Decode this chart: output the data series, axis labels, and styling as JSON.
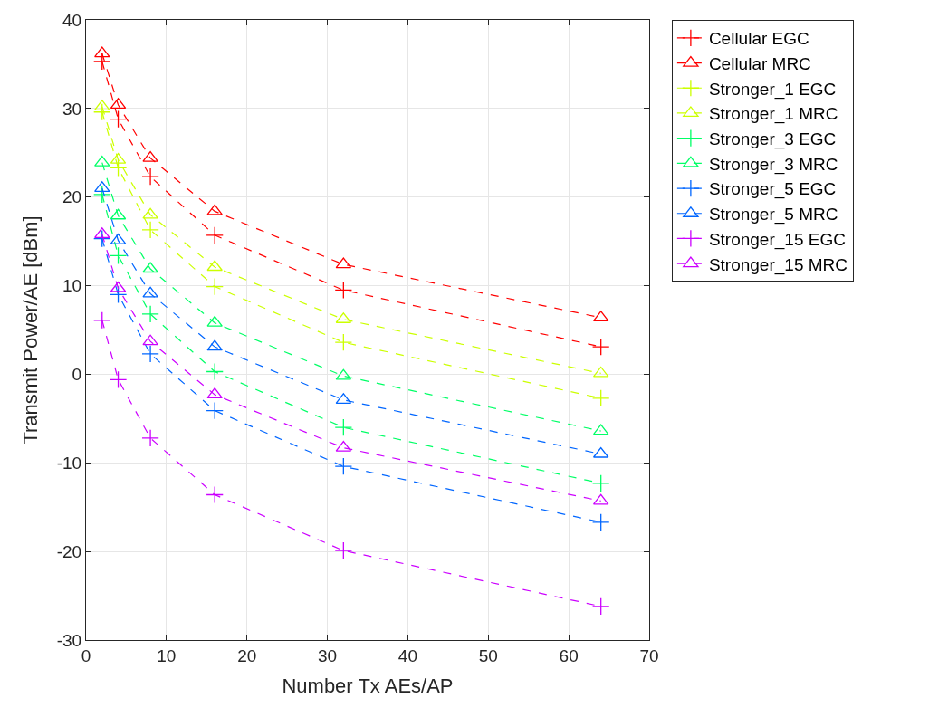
{
  "chart_data": {
    "type": "line",
    "xlabel": "Number Tx AEs/AP",
    "ylabel": "Transmit Power/AE [dBm]",
    "x": [
      2,
      4,
      8,
      16,
      32,
      64
    ],
    "xlim": [
      0,
      70
    ],
    "xticks": [
      0,
      10,
      20,
      30,
      40,
      50,
      60,
      70
    ],
    "ylim": [
      -30,
      40
    ],
    "yticks": [
      -30,
      -20,
      -10,
      0,
      10,
      20,
      30,
      40
    ],
    "grid": true,
    "legend": "top right",
    "line_style": "dashed",
    "series": [
      {
        "name": "Cellular EGC",
        "color": "#ff0000",
        "marker": "cross",
        "values": [
          35.3,
          28.8,
          22.3,
          15.7,
          9.5,
          3.1
        ]
      },
      {
        "name": "Cellular MRC",
        "color": "#ff0000",
        "marker": "triangle",
        "values": [
          36.2,
          30.4,
          24.4,
          18.4,
          12.4,
          6.4
        ]
      },
      {
        "name": "Stronger_1 EGC",
        "color": "#ccff00",
        "marker": "cross",
        "values": [
          29.6,
          23.3,
          16.3,
          9.9,
          3.6,
          -2.7
        ]
      },
      {
        "name": "Stronger_1 MRC",
        "color": "#ccff00",
        "marker": "triangle",
        "values": [
          30.2,
          24.2,
          18.0,
          12.1,
          6.2,
          0.1
        ]
      },
      {
        "name": "Stronger_3 EGC",
        "color": "#00ff66",
        "marker": "cross",
        "values": [
          20.3,
          13.4,
          6.8,
          0.3,
          -6.0,
          -12.3
        ]
      },
      {
        "name": "Stronger_3 MRC",
        "color": "#00ff66",
        "marker": "triangle",
        "values": [
          23.9,
          17.9,
          11.9,
          5.8,
          -0.2,
          -6.4
        ]
      },
      {
        "name": "Stronger_5 EGC",
        "color": "#0066ff",
        "marker": "cross",
        "values": [
          15.3,
          9.0,
          2.3,
          -4.1,
          -10.4,
          -16.7
        ]
      },
      {
        "name": "Stronger_5 MRC",
        "color": "#0066ff",
        "marker": "triangle",
        "values": [
          21.0,
          15.1,
          9.1,
          3.1,
          -2.9,
          -9.0
        ]
      },
      {
        "name": "Stronger_15 EGC",
        "color": "#cc00ff",
        "marker": "cross",
        "values": [
          6.1,
          -0.6,
          -7.2,
          -13.6,
          -19.9,
          -26.2
        ]
      },
      {
        "name": "Stronger_15 MRC",
        "color": "#cc00ff",
        "marker": "triangle",
        "values": [
          15.8,
          9.7,
          3.7,
          -2.3,
          -8.3,
          -14.3
        ]
      }
    ]
  }
}
